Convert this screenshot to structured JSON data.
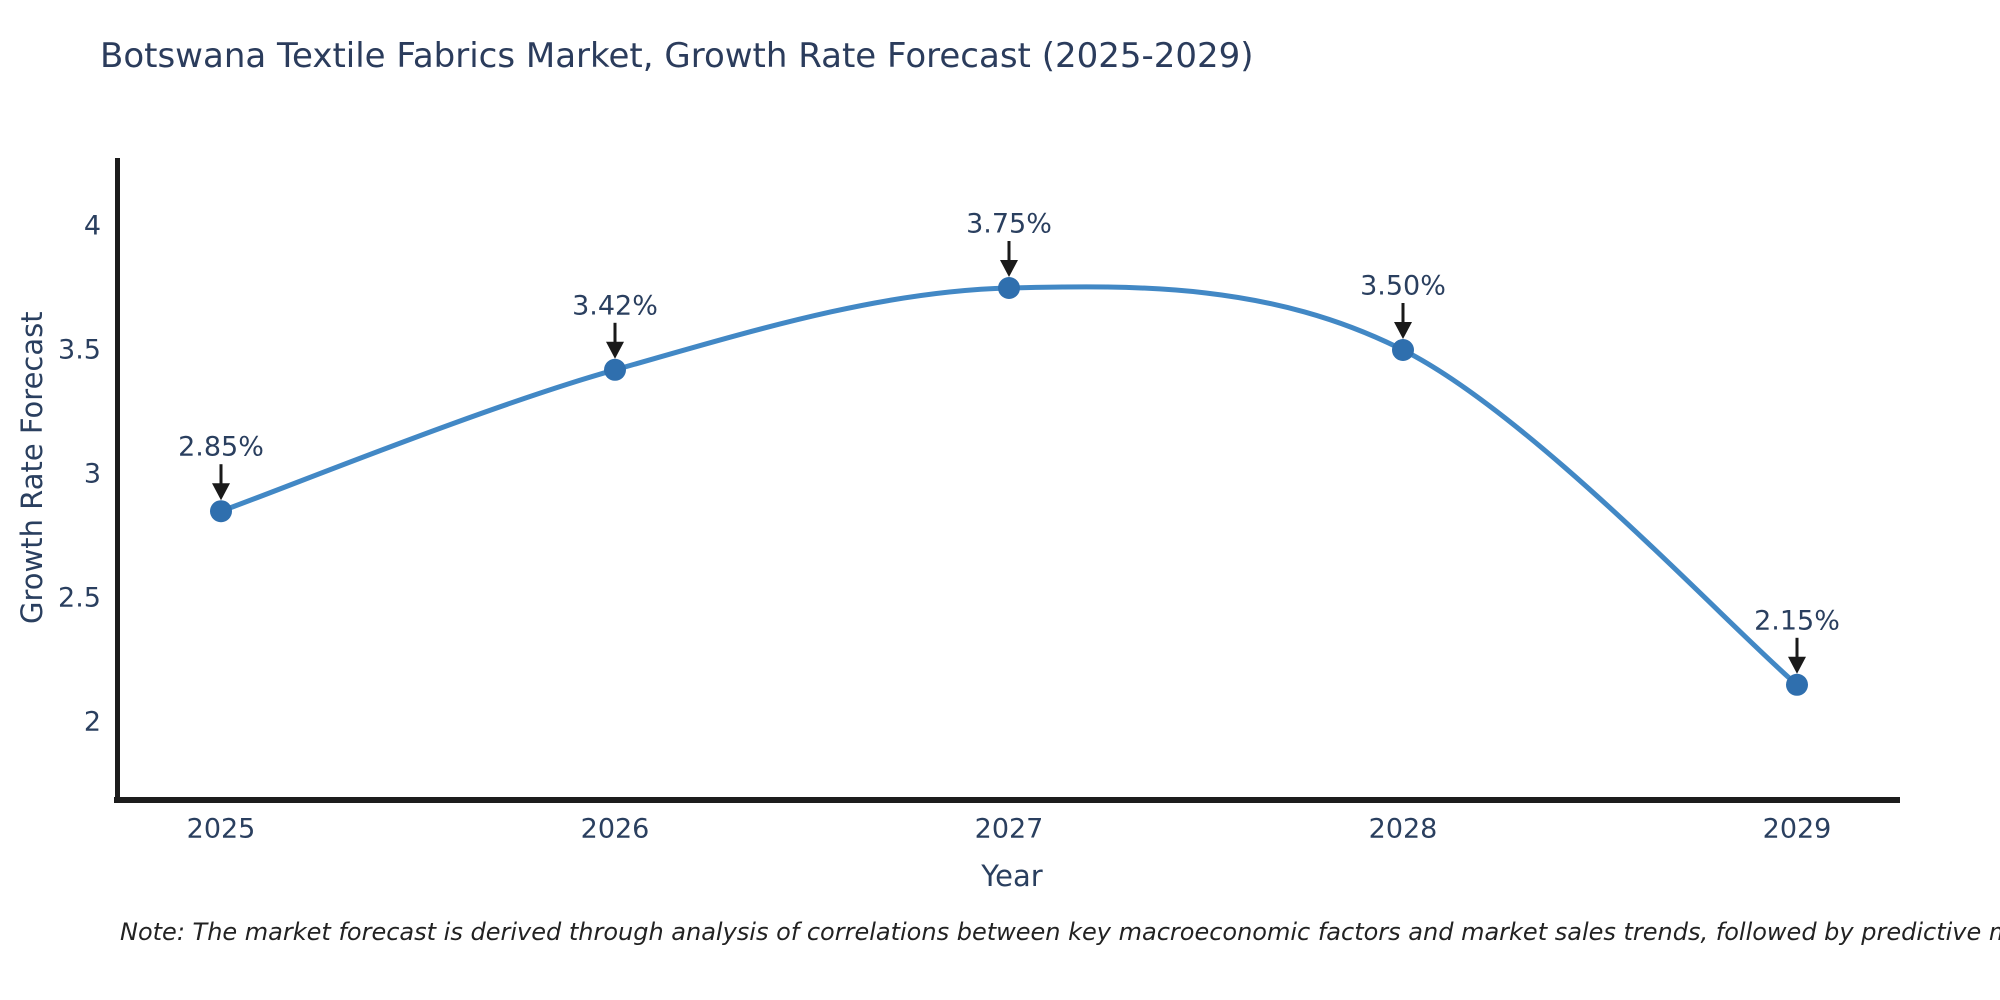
{
  "chart_data": {
    "type": "line",
    "title": "Botswana Textile Fabrics Market, Growth Rate Forecast (2025-2029)",
    "xlabel": "Year",
    "ylabel": "Growth Rate Forecast",
    "categories": [
      "2025",
      "2026",
      "2027",
      "2028",
      "2029"
    ],
    "values": [
      2.85,
      3.42,
      3.75,
      3.5,
      2.15
    ],
    "point_labels": [
      "2.85%",
      "3.42%",
      "3.75%",
      "3.50%",
      "2.15%"
    ],
    "yticks": [
      2,
      2.5,
      3,
      3.5,
      4
    ],
    "ytick_labels": [
      "2",
      "2.5",
      "3",
      "3.5",
      "4"
    ],
    "ylim": [
      1.68,
      4.27
    ],
    "line_shape": "spline",
    "grid": false,
    "legend": "none",
    "colors": {
      "line": "#4288c5",
      "marker": "#2f6fae",
      "arrow": "#1a1a1a",
      "text": "#2a3f5f",
      "axis": "#1c1c1c",
      "note": "#222222",
      "background": "#ffffff"
    }
  },
  "note": "Note: The market forecast is derived through analysis of correlations between key macroeconomic factors and market sales trends, followed by predictive modeling to project future sales"
}
